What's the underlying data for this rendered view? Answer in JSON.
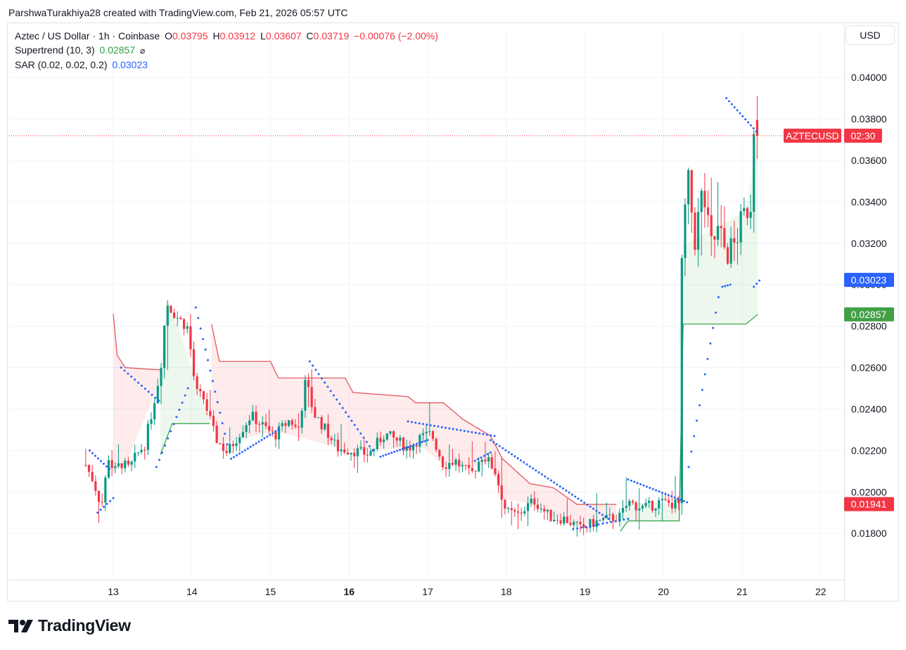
{
  "header": {
    "attribution": "ParshwaTurakhiya28 created with TradingView.com, Feb 21, 2026 05:57 UTC"
  },
  "legend": {
    "symbol_line": "Aztec / US Dollar · 1h · Coinbase",
    "o_label": "O",
    "o_value": "0.03795",
    "h_label": "H",
    "h_value": "0.03912",
    "l_label": "L",
    "l_value": "0.03607",
    "c_label": "C",
    "c_value": "0.03719",
    "change": "−0.00076 (−2.00%)",
    "supertrend_label": "Supertrend (10, 3)",
    "supertrend_value": "0.02857",
    "supertrend_icon": "⌀",
    "sar_label": "SAR (0.02, 0.02, 0.2)",
    "sar_value": "0.03023"
  },
  "currency": "USD",
  "footer": {
    "brand": "TradingView"
  },
  "colors": {
    "up": "#089981",
    "down": "#f23645",
    "sar": "#2962ff",
    "st_up": "#2e9e44",
    "st_down": "#e04d55"
  },
  "chart_data": {
    "type": "candlestick",
    "title": "Aztec / US Dollar · 1h · Coinbase",
    "x_ticks": [
      {
        "label": "13",
        "day": 13
      },
      {
        "label": "14",
        "day": 14
      },
      {
        "label": "15",
        "day": 15
      },
      {
        "label": "16",
        "day": 16,
        "bold": true
      },
      {
        "label": "17",
        "day": 17
      },
      {
        "label": "18",
        "day": 18
      },
      {
        "label": "19",
        "day": 19
      },
      {
        "label": "20",
        "day": 20
      },
      {
        "label": "21",
        "day": 21
      },
      {
        "label": "22",
        "day": 22
      }
    ],
    "y_ticks": [
      "0.04000",
      "0.03800",
      "0.03600",
      "0.03400",
      "0.03200",
      "0.03000",
      "0.02800",
      "0.02600",
      "0.02400",
      "0.02200",
      "0.02000",
      "0.01800"
    ],
    "ylim": [
      0.0158,
      0.0416
    ],
    "price_labels": [
      {
        "text": "AZTECUSD",
        "value": 0.03719,
        "color": "#f23645",
        "countdown": "02:30"
      },
      {
        "text": "0.03023",
        "value": 0.03023,
        "color": "#2962ff"
      },
      {
        "text": "0.02857",
        "value": 0.02857,
        "color": "#43a047"
      },
      {
        "text": "0.01941",
        "value": 0.01941,
        "color": "#f23645"
      }
    ],
    "last_price": 0.03719,
    "anchors": [
      [
        12.65,
        0.0213
      ],
      [
        12.75,
        0.0205
      ],
      [
        12.85,
        0.0193
      ],
      [
        12.95,
        0.0219
      ],
      [
        13.0,
        0.0209
      ],
      [
        13.1,
        0.0214
      ],
      [
        13.2,
        0.0211
      ],
      [
        13.3,
        0.0218
      ],
      [
        13.4,
        0.0223
      ],
      [
        13.5,
        0.024
      ],
      [
        13.6,
        0.0259
      ],
      [
        13.68,
        0.0293
      ],
      [
        13.75,
        0.0287
      ],
      [
        13.85,
        0.0283
      ],
      [
        13.95,
        0.0279
      ],
      [
        14.05,
        0.0248
      ],
      [
        14.15,
        0.0245
      ],
      [
        14.3,
        0.0226
      ],
      [
        14.45,
        0.0219
      ],
      [
        14.6,
        0.0228
      ],
      [
        14.75,
        0.0237
      ],
      [
        14.9,
        0.0232
      ],
      [
        15.05,
        0.0227
      ],
      [
        15.25,
        0.0235
      ],
      [
        15.35,
        0.0229
      ],
      [
        15.45,
        0.0254
      ],
      [
        15.55,
        0.0238
      ],
      [
        15.7,
        0.023
      ],
      [
        15.85,
        0.0221
      ],
      [
        16.05,
        0.022
      ],
      [
        16.25,
        0.0218
      ],
      [
        16.45,
        0.0228
      ],
      [
        16.6,
        0.0225
      ],
      [
        16.75,
        0.0221
      ],
      [
        16.9,
        0.0226
      ],
      [
        17.05,
        0.0228
      ],
      [
        17.2,
        0.0213
      ],
      [
        17.35,
        0.0215
      ],
      [
        17.55,
        0.0208
      ],
      [
        17.7,
        0.0218
      ],
      [
        17.85,
        0.0211
      ],
      [
        18.0,
        0.019
      ],
      [
        18.15,
        0.0189
      ],
      [
        18.35,
        0.0196
      ],
      [
        18.55,
        0.0188
      ],
      [
        18.75,
        0.0187
      ],
      [
        18.95,
        0.0182
      ],
      [
        19.1,
        0.0185
      ],
      [
        19.3,
        0.0187
      ],
      [
        19.45,
        0.0188
      ],
      [
        19.55,
        0.0195
      ],
      [
        19.75,
        0.0192
      ],
      [
        19.95,
        0.0195
      ],
      [
        20.2,
        0.0194
      ],
      [
        20.22,
        0.0297
      ],
      [
        20.3,
        0.0354
      ],
      [
        20.4,
        0.0322
      ],
      [
        20.5,
        0.0346
      ],
      [
        20.6,
        0.0318
      ],
      [
        20.7,
        0.0326
      ],
      [
        20.8,
        0.0315
      ],
      [
        20.9,
        0.0319
      ],
      [
        21.0,
        0.0331
      ],
      [
        21.08,
        0.0338
      ],
      [
        21.12,
        0.034
      ],
      [
        21.15,
        0.0378
      ],
      [
        21.2,
        0.03719
      ]
    ],
    "supertrend": [
      {
        "trend": "down",
        "points": [
          [
            13.0,
            0.0286
          ],
          [
            13.05,
            0.0266
          ],
          [
            13.15,
            0.026
          ],
          [
            13.55,
            0.0259
          ],
          [
            13.6,
            0.0259
          ]
        ]
      },
      {
        "trend": "up",
        "points": [
          [
            13.6,
            0.0218
          ],
          [
            13.68,
            0.0226
          ],
          [
            13.75,
            0.0233
          ],
          [
            14.2,
            0.0233
          ],
          [
            14.23,
            0.0233
          ]
        ]
      },
      {
        "trend": "down",
        "points": [
          [
            14.25,
            0.0281
          ],
          [
            14.35,
            0.0263
          ],
          [
            15.0,
            0.0263
          ],
          [
            15.1,
            0.0255
          ],
          [
            15.95,
            0.0255
          ],
          [
            16.05,
            0.0248
          ],
          [
            16.75,
            0.0246
          ],
          [
            16.85,
            0.0243
          ],
          [
            17.2,
            0.0243
          ],
          [
            17.45,
            0.0235
          ],
          [
            17.8,
            0.0227
          ],
          [
            17.95,
            0.0216
          ],
          [
            18.3,
            0.0204
          ],
          [
            18.6,
            0.0202
          ],
          [
            18.9,
            0.0194
          ],
          [
            19.4,
            0.0194
          ]
        ]
      },
      {
        "trend": "up",
        "points": [
          [
            19.45,
            0.0181
          ],
          [
            19.55,
            0.0186
          ],
          [
            20.2,
            0.0186
          ],
          [
            20.25,
            0.0281
          ],
          [
            20.4,
            0.0281
          ],
          [
            21.05,
            0.0281
          ],
          [
            21.2,
            0.02857
          ]
        ]
      }
    ],
    "sar": [
      {
        "from": [
          12.7,
          0.022
        ],
        "to": [
          12.95,
          0.0211
        ],
        "n": 8
      },
      {
        "from": [
          12.8,
          0.019
        ],
        "to": [
          13.0,
          0.0197
        ],
        "n": 6
      },
      {
        "from": [
          13.1,
          0.026
        ],
        "to": [
          13.58,
          0.0244
        ],
        "n": 12
      },
      {
        "from": [
          13.55,
          0.0212
        ],
        "to": [
          13.95,
          0.025
        ],
        "n": 12
      },
      {
        "from": [
          14.05,
          0.0289
        ],
        "to": [
          14.45,
          0.0223
        ],
        "n": 14
      },
      {
        "from": [
          14.5,
          0.0216
        ],
        "to": [
          15.1,
          0.023
        ],
        "n": 18
      },
      {
        "from": [
          15.5,
          0.0263
        ],
        "to": [
          16.3,
          0.022
        ],
        "n": 22
      },
      {
        "from": [
          16.4,
          0.0217
        ],
        "to": [
          17.0,
          0.0225
        ],
        "n": 18
      },
      {
        "from": [
          16.75,
          0.0234
        ],
        "to": [
          17.85,
          0.0227
        ],
        "n": 24
      },
      {
        "from": [
          17.6,
          0.0215
        ],
        "to": [
          17.8,
          0.0219
        ],
        "n": 6
      },
      {
        "from": [
          17.8,
          0.0225
        ],
        "to": [
          19.3,
          0.0187
        ],
        "n": 40
      },
      {
        "from": [
          18.85,
          0.0182
        ],
        "to": [
          19.55,
          0.0187
        ],
        "n": 14
      },
      {
        "from": [
          19.55,
          0.0206
        ],
        "to": [
          20.3,
          0.0195
        ],
        "n": 20
      },
      {
        "from": [
          20.32,
          0.0212
        ],
        "to": [
          20.7,
          0.0294
        ],
        "n": 12
      },
      {
        "from": [
          20.75,
          0.0299
        ],
        "to": [
          20.85,
          0.03
        ],
        "n": 4
      },
      {
        "from": [
          20.8,
          0.039
        ],
        "to": [
          21.18,
          0.0374
        ],
        "n": 12
      },
      {
        "from": [
          21.15,
          0.0299
        ],
        "to": [
          21.22,
          0.0302
        ],
        "n": 3
      }
    ]
  }
}
